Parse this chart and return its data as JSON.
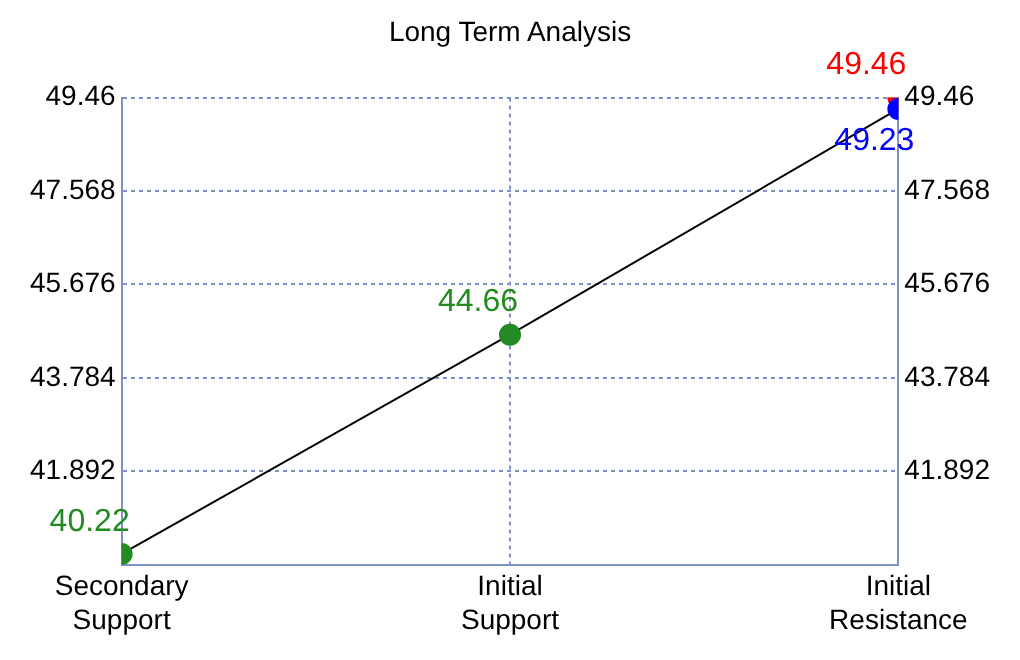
{
  "chart_data": {
    "type": "line",
    "title": "Long Term Analysis",
    "categories": [
      "Secondary Support",
      "Initial Support",
      "Initial Resistance"
    ],
    "series": [
      {
        "type": "line",
        "color": "#000000",
        "colors": [
          "#228b22",
          "#228b22",
          "#0000ff"
        ],
        "values": [
          40.22,
          44.66,
          49.23
        ],
        "value_labels": [
          "40.22",
          "44.66",
          "49.23"
        ]
      },
      {
        "type": "scatter",
        "x": [
          "Initial Resistance"
        ],
        "color": "#ff0000",
        "values": [
          49.46
        ],
        "value_labels": [
          "49.46"
        ]
      }
    ],
    "ylim": [
      40,
      49.46
    ],
    "yticks": [
      41.892,
      43.784,
      45.676,
      47.568,
      49.46
    ],
    "y2lim": [
      40,
      49.46
    ],
    "y2ticks": [
      41.892,
      43.784,
      45.676,
      47.568,
      49.46
    ],
    "grid": true,
    "marker": "circle",
    "line_style": "solid",
    "legend": false
  }
}
